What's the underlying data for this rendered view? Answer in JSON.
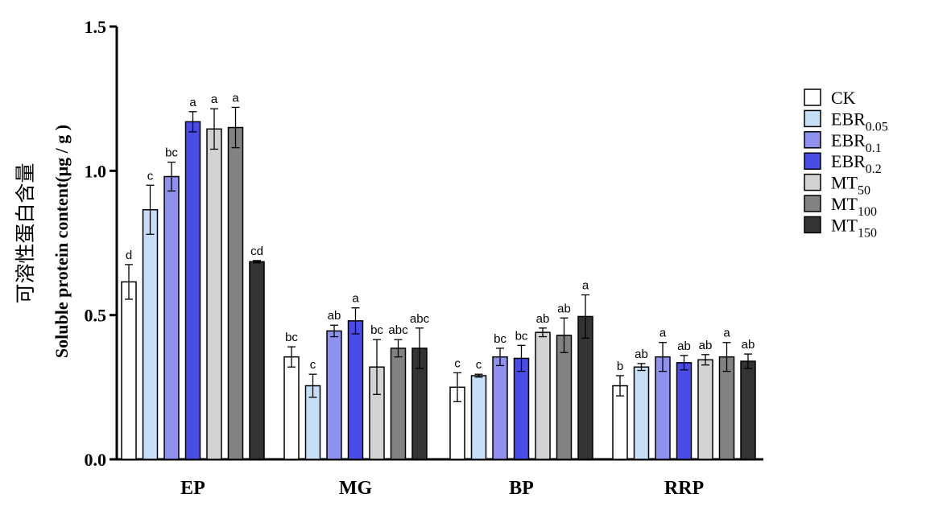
{
  "chart_data": {
    "type": "bar",
    "title": "",
    "xlabel": "",
    "ylabel": "Soluble protein content(μg / g )",
    "ylabel_cn": "可溶性蛋白含量",
    "ylim": [
      0,
      1.5
    ],
    "yticks": [
      "0.0",
      "0.5",
      "1.0",
      "1.5"
    ],
    "categories": [
      "EP",
      "MG",
      "BP",
      "RRP"
    ],
    "legend_position": "right",
    "series": [
      {
        "name": "CK",
        "base": "CK",
        "sub": "",
        "color": "#ffffff",
        "values": [
          0.615,
          0.355,
          0.25,
          0.255
        ],
        "errors": [
          0.06,
          0.035,
          0.05,
          0.035
        ],
        "labels": [
          "d",
          "bc",
          "c",
          "b"
        ]
      },
      {
        "name": "EBR0.05",
        "base": "EBR",
        "sub": "0.05",
        "color": "#c6dff7",
        "values": [
          0.865,
          0.255,
          0.29,
          0.32
        ],
        "errors": [
          0.085,
          0.04,
          0.005,
          0.012
        ],
        "labels": [
          "c",
          "c",
          "c",
          "ab"
        ]
      },
      {
        "name": "EBR0.1",
        "base": "EBR",
        "sub": "0.1",
        "color": "#8f91ee",
        "values": [
          0.98,
          0.445,
          0.355,
          0.355
        ],
        "errors": [
          0.05,
          0.02,
          0.03,
          0.05
        ],
        "labels": [
          "bc",
          "ab",
          "bc",
          "a"
        ]
      },
      {
        "name": "EBR0.2",
        "base": "EBR",
        "sub": "0.2",
        "color": "#4a4ce8",
        "values": [
          1.17,
          0.48,
          0.35,
          0.335
        ],
        "errors": [
          0.035,
          0.045,
          0.045,
          0.025
        ],
        "labels": [
          "a",
          "a",
          "bc",
          "ab"
        ]
      },
      {
        "name": "MT50",
        "base": "MT",
        "sub": "50",
        "color": "#d2d2d2",
        "values": [
          1.145,
          0.32,
          0.44,
          0.345
        ],
        "errors": [
          0.07,
          0.095,
          0.015,
          0.018
        ],
        "labels": [
          "a",
          "bc",
          "ab",
          "ab"
        ]
      },
      {
        "name": "MT100",
        "base": "MT",
        "sub": "100",
        "color": "#828282",
        "values": [
          1.15,
          0.385,
          0.43,
          0.355
        ],
        "errors": [
          0.07,
          0.03,
          0.06,
          0.05
        ],
        "labels": [
          "a",
          "abc",
          "ab",
          "a"
        ]
      },
      {
        "name": "MT150",
        "base": "MT",
        "sub": "150",
        "color": "#333333",
        "values": [
          0.685,
          0.385,
          0.495,
          0.34
        ],
        "errors": [
          0.004,
          0.07,
          0.075,
          0.025
        ],
        "labels": [
          "cd",
          "abc",
          "a",
          "ab"
        ]
      }
    ]
  }
}
